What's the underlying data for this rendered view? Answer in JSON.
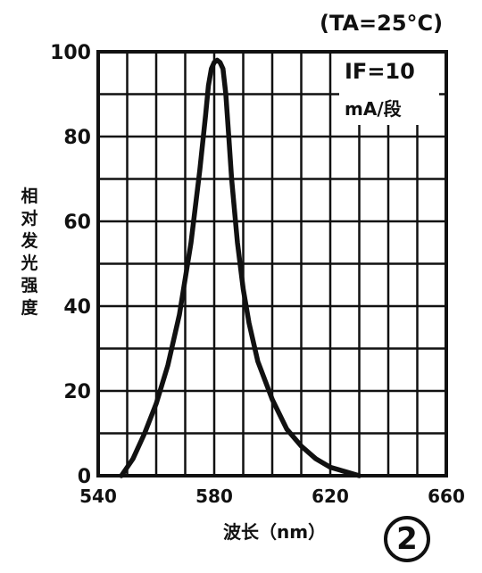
{
  "chart_data": {
    "type": "line",
    "condition": "(TA=25°C)",
    "legend": {
      "line1": "IF=10",
      "line2": "mA/段"
    },
    "xlabel": "波长（nm）",
    "ylabel": "相对发光强度",
    "xlim": [
      540,
      660
    ],
    "ylim": [
      0,
      100
    ],
    "x_ticks": [
      "540",
      "580",
      "620",
      "660"
    ],
    "y_ticks": [
      "0",
      "20",
      "40",
      "60",
      "80",
      "100"
    ],
    "grid": true,
    "series": [
      {
        "x": [
          548,
          552,
          556,
          560,
          564,
          568,
          572,
          575,
          577,
          578,
          579,
          580,
          581,
          582,
          583,
          584,
          585,
          586,
          588,
          590,
          592,
          595,
          600,
          605,
          610,
          615,
          620,
          625,
          630
        ],
        "y": [
          0,
          4,
          10,
          17,
          26,
          38,
          55,
          72,
          85,
          92,
          96,
          97.5,
          98,
          97.5,
          96,
          90,
          80,
          70,
          55,
          44,
          36,
          27,
          18,
          11,
          7,
          4,
          2,
          1,
          0
        ]
      }
    ],
    "badge": "2"
  }
}
